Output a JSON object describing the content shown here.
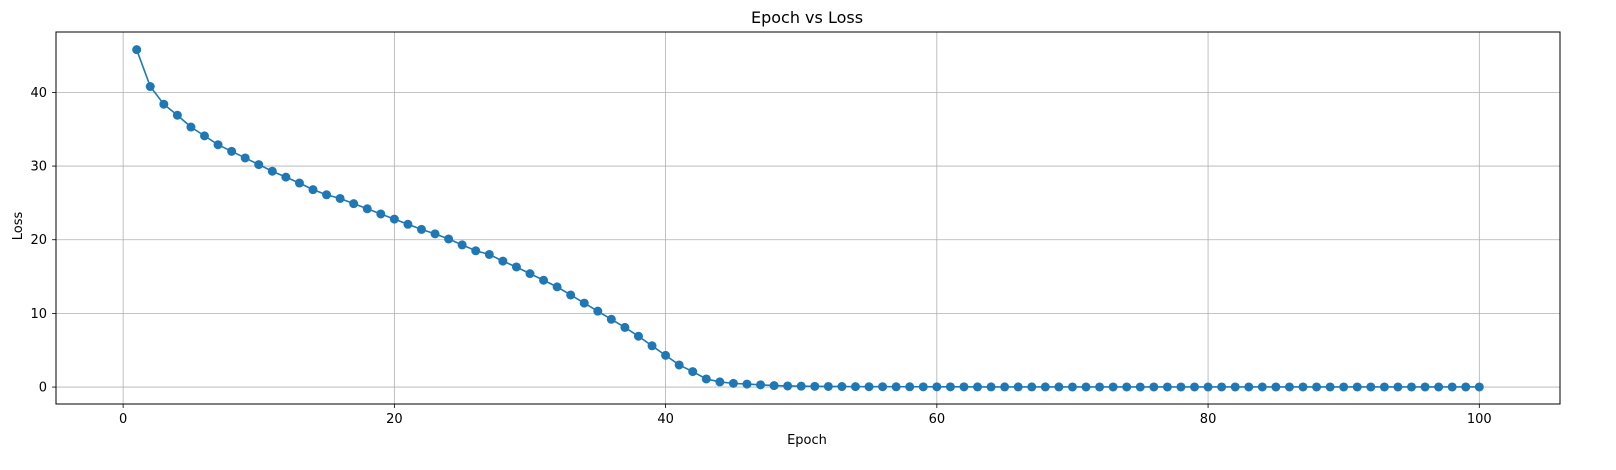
{
  "chart_data": {
    "type": "line",
    "title": "Epoch vs Loss",
    "xlabel": "Epoch",
    "ylabel": "Loss",
    "xlim": [
      -4.95,
      105.95
    ],
    "ylim": [
      -2.3,
      48.2
    ],
    "xticks": [
      0,
      20,
      40,
      60,
      80,
      100
    ],
    "yticks": [
      0,
      10,
      20,
      30,
      40
    ],
    "grid": true,
    "marker": "circle",
    "color": "#1f77b4",
    "series": [
      {
        "x": [
          1,
          2,
          3,
          4,
          5,
          6,
          7,
          8,
          9,
          10,
          11,
          12,
          13,
          14,
          15,
          16,
          17,
          18,
          19,
          20,
          21,
          22,
          23,
          24,
          25,
          26,
          27,
          28,
          29,
          30,
          31,
          32,
          33,
          34,
          35,
          36,
          37,
          38,
          39,
          40,
          41,
          42,
          43,
          44,
          45,
          46,
          47,
          48,
          49,
          50,
          51,
          52,
          53,
          54,
          55,
          56,
          57,
          58,
          59,
          60,
          61,
          62,
          63,
          64,
          65,
          66,
          67,
          68,
          69,
          70,
          71,
          72,
          73,
          74,
          75,
          76,
          77,
          78,
          79,
          80,
          81,
          82,
          83,
          84,
          85,
          86,
          87,
          88,
          89,
          90,
          91,
          92,
          93,
          94,
          95,
          96,
          97,
          98,
          99,
          100
        ],
        "values": [
          45.8,
          40.8,
          38.4,
          36.9,
          35.3,
          34.1,
          32.9,
          32.0,
          31.1,
          30.2,
          29.3,
          28.5,
          27.7,
          26.8,
          26.1,
          25.6,
          24.9,
          24.2,
          23.5,
          22.8,
          22.1,
          21.4,
          20.8,
          20.1,
          19.3,
          18.5,
          18.0,
          17.1,
          16.3,
          15.4,
          14.5,
          13.6,
          12.5,
          11.4,
          10.3,
          9.2,
          8.1,
          6.9,
          5.6,
          4.3,
          3.0,
          2.1,
          1.1,
          0.7,
          0.5,
          0.4,
          0.3,
          0.2,
          0.15,
          0.12,
          0.1,
          0.08,
          0.07,
          0.06,
          0.05,
          0.05,
          0.04,
          0.04,
          0.03,
          0.03,
          0.03,
          0.03,
          0.02,
          0.02,
          0.02,
          0.02,
          0.02,
          0.02,
          0.02,
          0.01,
          0.01,
          0.01,
          0.01,
          0.01,
          0.01,
          0.01,
          0.01,
          0.01,
          0.01,
          0.01,
          0.01,
          0.01,
          0.01,
          0.01,
          0.01,
          0.01,
          0.01,
          0.01,
          0.01,
          0.01,
          0.01,
          0.01,
          0.01,
          0.01,
          0.01,
          0.01,
          0.01,
          0.01,
          0.01,
          0.01
        ]
      }
    ]
  }
}
